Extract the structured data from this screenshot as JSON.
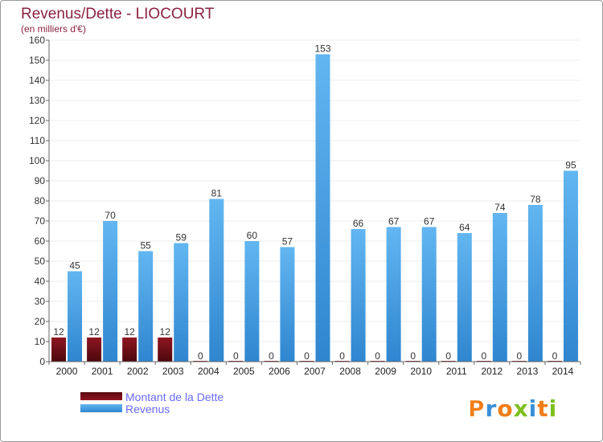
{
  "chart_data": {
    "type": "bar",
    "title": "Revenus/Dette - LIOCOURT",
    "subtitle": "(en milliers d'€)",
    "categories": [
      "2000",
      "2001",
      "2002",
      "2003",
      "2004",
      "2005",
      "2006",
      "2007",
      "2008",
      "2009",
      "2010",
      "2011",
      "2012",
      "2013",
      "2014"
    ],
    "series": [
      {
        "name": "Montant de la Dette",
        "color": "#7a0f1a",
        "values": [
          12,
          12,
          12,
          12,
          0,
          0,
          0,
          0,
          0,
          0,
          0,
          0,
          0,
          0,
          0
        ]
      },
      {
        "name": "Revenus",
        "color": "#4fa4e6",
        "values": [
          45,
          70,
          55,
          59,
          81,
          60,
          57,
          153,
          66,
          67,
          67,
          64,
          74,
          78,
          95
        ]
      }
    ],
    "ylim": [
      0,
      160
    ],
    "yticks": [
      0,
      10,
      20,
      30,
      40,
      50,
      60,
      70,
      80,
      90,
      100,
      110,
      120,
      130,
      140,
      150,
      160
    ],
    "grid": true,
    "legend": "bottom-left"
  },
  "colors": {
    "axis": "#666666",
    "grid": "#ececec",
    "brand_orange": "#f07d18",
    "brand_blue": "#3a8fd8",
    "brand_green": "#7cc020"
  },
  "brand": {
    "name": "Proxiti"
  }
}
